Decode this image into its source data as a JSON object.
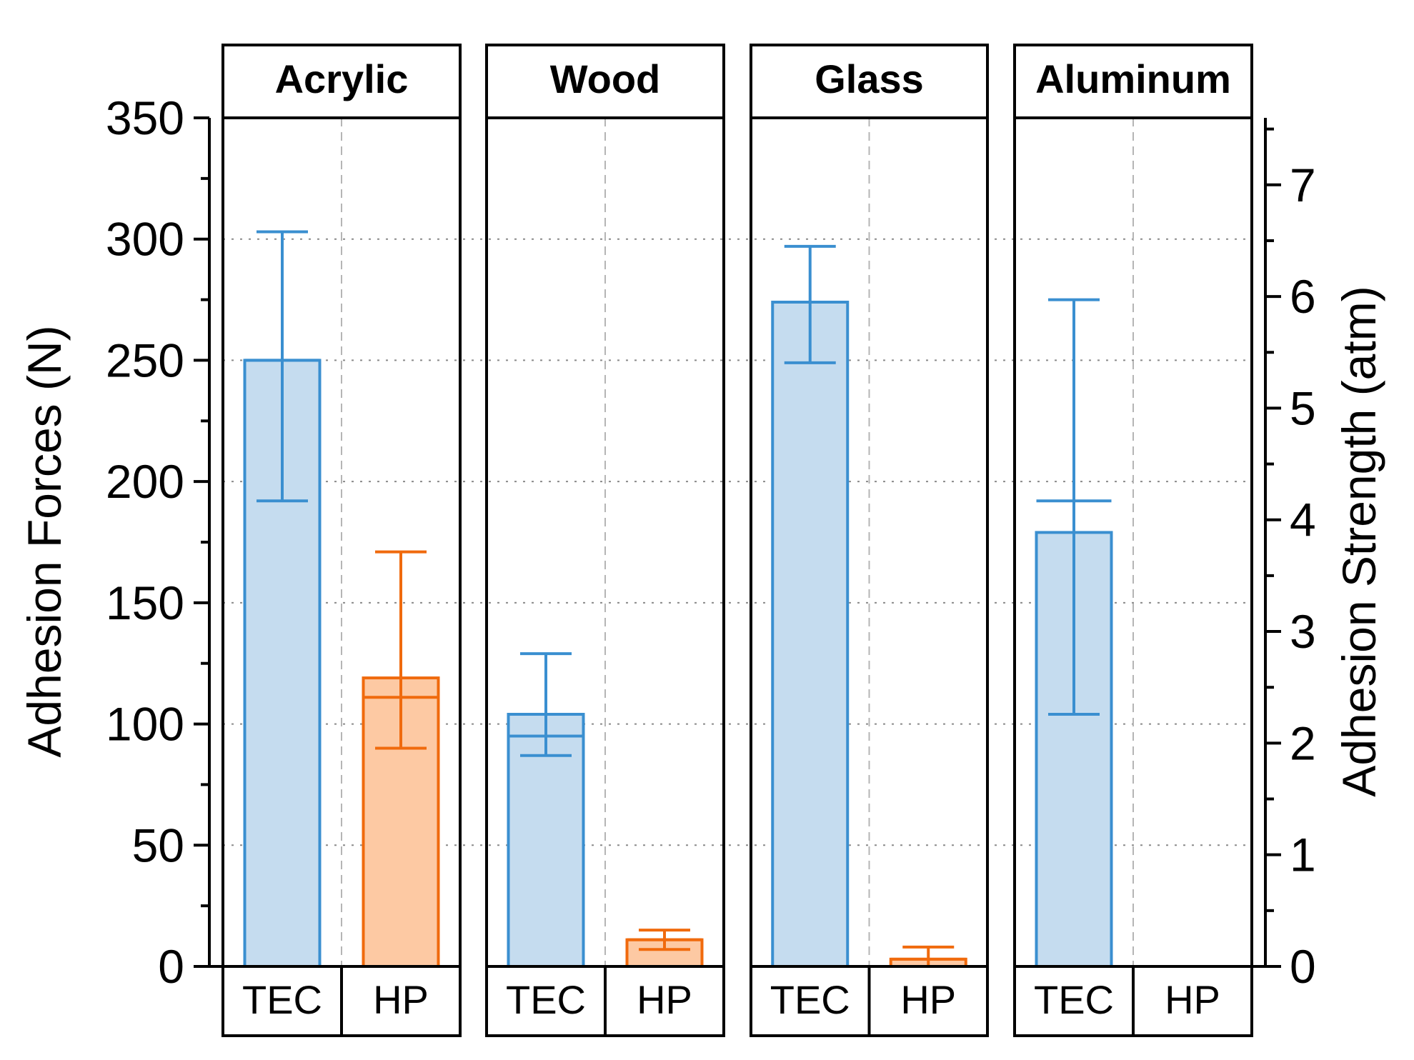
{
  "chart_data": {
    "type": "bar",
    "panels": [
      "Acrylic",
      "Wood",
      "Glass",
      "Aluminum"
    ],
    "categories": [
      "TEC",
      "HP"
    ],
    "colors": {
      "TEC": {
        "fill": "#c5dcef",
        "stroke": "#3a8fd0"
      },
      "HP": {
        "fill": "#fdc9a3",
        "stroke": "#f06a0d"
      }
    },
    "series": [
      {
        "panel": "Acrylic",
        "category": "TEC",
        "value": 250,
        "mean": 250,
        "err_low": 192,
        "err_high": 303
      },
      {
        "panel": "Acrylic",
        "category": "HP",
        "value": 119,
        "mean": 111,
        "err_low": 90,
        "err_high": 171
      },
      {
        "panel": "Wood",
        "category": "TEC",
        "value": 104,
        "mean": 95,
        "err_low": 87,
        "err_high": 129
      },
      {
        "panel": "Wood",
        "category": "HP",
        "value": 11,
        "mean": 11,
        "err_low": 7,
        "err_high": 15
      },
      {
        "panel": "Glass",
        "category": "TEC",
        "value": 274,
        "mean": 274,
        "err_low": 249,
        "err_high": 297
      },
      {
        "panel": "Glass",
        "category": "HP",
        "value": 3,
        "mean": 3,
        "err_low": 0,
        "err_high": 8
      },
      {
        "panel": "Aluminum",
        "category": "TEC",
        "value": 179,
        "mean": 192,
        "err_low": 104,
        "err_high": 275
      },
      {
        "panel": "Aluminum",
        "category": "HP",
        "value": null,
        "mean": null,
        "err_low": null,
        "err_high": null
      }
    ],
    "ylabel": "Adhesion Forces (N)",
    "ylim": [
      0,
      350
    ],
    "yticks": [
      "0",
      "50",
      "100",
      "150",
      "200",
      "250",
      "300",
      "350"
    ],
    "y2label": "Adhesion Strength (atm)",
    "y2lim": [
      0,
      7.6
    ],
    "y2ticks": [
      "0",
      "1",
      "2",
      "3",
      "4",
      "5",
      "6",
      "7"
    ],
    "grid": true
  }
}
